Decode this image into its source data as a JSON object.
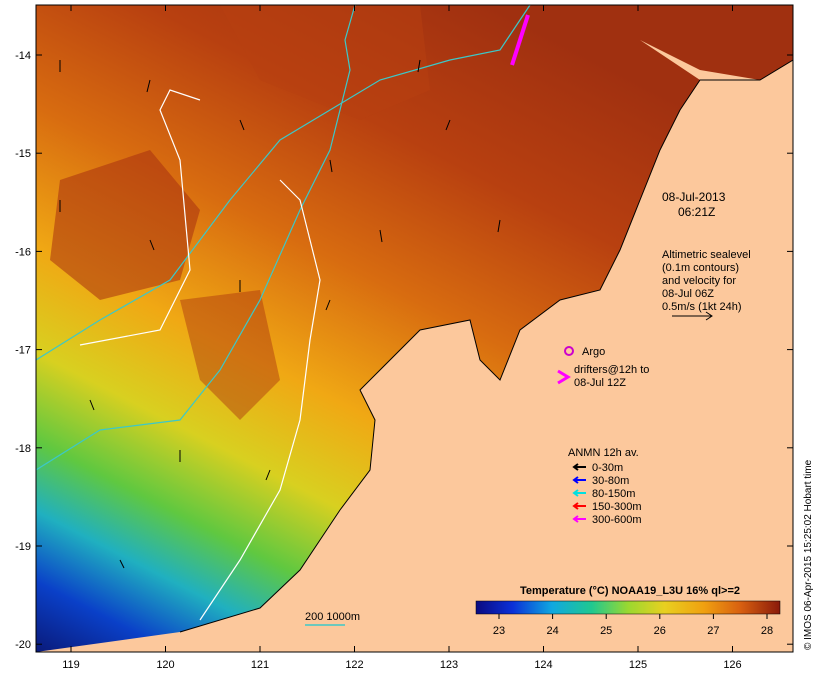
{
  "map": {
    "lon_ticks": [
      "119",
      "120",
      "121",
      "122",
      "123",
      "124",
      "125",
      "126"
    ],
    "lat_ticks": [
      "-14",
      "-15",
      "-16",
      "-17",
      "-18",
      "-19",
      "-20"
    ],
    "timestamp": {
      "date": "08-Jul-2013",
      "time": "06:21Z"
    },
    "sealevel_legend": {
      "lines": [
        "Altimetric sealevel",
        "(0.1m contours)",
        "and velocity for",
        "08-Jul 06Z",
        "0.5m/s (1kt 24h)"
      ]
    },
    "argo_label": "Argo",
    "drifters_label": [
      "drifters@12h to",
      "08-Jul 12Z"
    ],
    "anmn": {
      "title": "ANMN 12h av.",
      "items": [
        {
          "label": "0-30m",
          "color": "#000000"
        },
        {
          "label": "30-80m",
          "color": "#0000ff"
        },
        {
          "label": "80-150m",
          "color": "#00e0e0"
        },
        {
          "label": "150-300m",
          "color": "#ff0000"
        },
        {
          "label": "300-600m",
          "color": "#ff00ff"
        }
      ]
    },
    "isobath_label": "200  1000m",
    "colorbar": {
      "title": "Temperature (°C) NOAA19_L3U 16% ql>=2",
      "ticks": [
        "23",
        "24",
        "25",
        "26",
        "27",
        "28"
      ]
    },
    "credit": "© IMOS 06-Apr-2015 15:25:02 Hobart time",
    "colors": {
      "land": "#fcc89c",
      "cool": "#0a1a7a",
      "warm": "#b63a10",
      "isobath_200": "#3cc8c8",
      "isobath_1000": "#ffffff",
      "argo": "#cc00cc",
      "drifter": "#ff00ff"
    }
  }
}
